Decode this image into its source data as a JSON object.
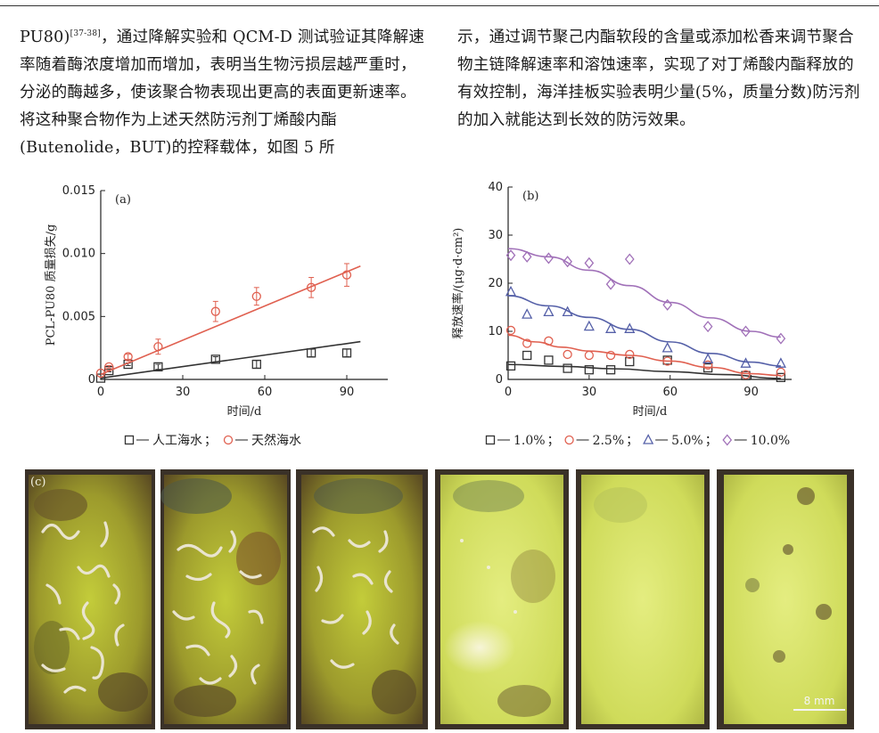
{
  "text": {
    "left_html": "PU80)<sup>[37-38]</sup>，通过降解实验和 QCM-D 测试验证其降解速率随着酶浓度增加而增加，表明当生物污损层越严重时，分泌的酶越多，使该聚合物表现出更高的表面更新速率。将这种聚合物作为上述天然防污剂丁烯酸内酯(Butenolide，BUT)的控释载体，如图 5 所",
    "left": {
      "ref_prefix": "PU80)",
      "ref": "[37-38]",
      "body": "，通过降解实验和 QCM-D 测试验证其降解速率随着酶浓度增加而增加，表明当生物污损层越严重时，分泌的酶越多，使该聚合物表现出更高的表面更新速率。将这种聚合物作为上述天然防污剂丁烯酸内酯(Butenolide，BUT)的控释载体，如图 5 所"
    },
    "right": "示，通过调节聚己内酯软段的含量或添加松香来调节聚合物主链降解速率和溶蚀速率，实现了对丁烯酸内酯释放的有效控制，海洋挂板实验表明少量(5%，质量分数)防污剂的加入就能达到长效的防污效果。"
  },
  "chart_data": [
    {
      "type": "scatter",
      "panel_label": "(a)",
      "xlabel": "时间/d",
      "ylabel": "PCL-PU80 质量损失/g",
      "xlim": [
        0,
        105
      ],
      "ylim": [
        0,
        0.015
      ],
      "x_ticks": [
        0,
        30,
        60,
        90
      ],
      "y_ticks": [
        0,
        0.005,
        0.01,
        0.015
      ],
      "y_tick_labels": [
        "0",
        "0.005",
        "0.010",
        "0.015"
      ],
      "grid": false,
      "legend_position": "bottom",
      "series": [
        {
          "name": "人工海水",
          "marker": "square",
          "color": "#333333",
          "x": [
            0,
            3,
            10,
            21,
            42,
            57,
            77,
            90
          ],
          "y": [
            0.0001,
            0.0007,
            0.0012,
            0.001,
            0.0016,
            0.0012,
            0.0021,
            0.0021
          ],
          "error": [
            0,
            0.0001,
            0.0001,
            0.0002,
            0.0002,
            0.0003,
            0.0003,
            0.0003
          ],
          "fit_line": [
            [
              0,
              0.0001
            ],
            [
              95,
              0.003
            ]
          ]
        },
        {
          "name": "天然海水",
          "marker": "circle",
          "color": "#e06050",
          "x": [
            0,
            3,
            10,
            21,
            42,
            57,
            77,
            90
          ],
          "y": [
            0.0005,
            0.001,
            0.0018,
            0.0026,
            0.0054,
            0.0066,
            0.0073,
            0.0083
          ],
          "error": [
            0,
            0.0001,
            0.0002,
            0.0006,
            0.0008,
            0.0007,
            0.0008,
            0.0009
          ],
          "fit_line": [
            [
              0,
              0.0004
            ],
            [
              95,
              0.009
            ]
          ]
        }
      ]
    },
    {
      "type": "scatter",
      "panel_label": "(b)",
      "xlabel": "时间/d",
      "ylabel": "释放速率/(μg·d·cm²)",
      "xlim": [
        0,
        105
      ],
      "ylim": [
        0,
        40
      ],
      "x_ticks": [
        0,
        30,
        60,
        90
      ],
      "y_ticks": [
        0,
        10,
        20,
        30,
        40
      ],
      "grid": false,
      "legend_position": "bottom",
      "series": [
        {
          "name": "1.0%",
          "marker": "square",
          "color": "#333333",
          "x": [
            1,
            7,
            15,
            22,
            30,
            38,
            45,
            59,
            74,
            88,
            101
          ],
          "y": [
            2.8,
            5.0,
            4.0,
            2.3,
            2.0,
            2.0,
            3.7,
            4.0,
            2.4,
            0.8,
            0.4
          ],
          "curve": [
            [
              0,
              3.1
            ],
            [
              20,
              2.7
            ],
            [
              40,
              2.2
            ],
            [
              60,
              1.6
            ],
            [
              80,
              1.0
            ],
            [
              101,
              0.2
            ]
          ]
        },
        {
          "name": "2.5%",
          "marker": "circle",
          "color": "#e06050",
          "x": [
            1,
            7,
            15,
            22,
            30,
            38,
            45,
            59,
            74,
            88,
            101
          ],
          "y": [
            10.2,
            7.5,
            8.0,
            5.2,
            5.0,
            5.0,
            5.2,
            3.8,
            3.0,
            1.0,
            1.5
          ],
          "curve": [
            [
              0,
              9.2
            ],
            [
              10,
              7.8
            ],
            [
              20,
              6.7
            ],
            [
              30,
              5.9
            ],
            [
              45,
              5.0
            ],
            [
              60,
              3.8
            ],
            [
              75,
              2.5
            ],
            [
              90,
              1.2
            ],
            [
              101,
              0.8
            ]
          ]
        },
        {
          "name": "5.0%",
          "marker": "triangle",
          "color": "#5560a8",
          "x": [
            1,
            7,
            15,
            22,
            30,
            38,
            45,
            59,
            74,
            88,
            101
          ],
          "y": [
            18.2,
            13.5,
            14.0,
            14.0,
            11.0,
            10.5,
            10.5,
            6.5,
            4.2,
            3.3,
            3.3
          ],
          "curve": [
            [
              0,
              17.4
            ],
            [
              15,
              15.3
            ],
            [
              30,
              12.9
            ],
            [
              45,
              10.4
            ],
            [
              60,
              7.8
            ],
            [
              75,
              5.4
            ],
            [
              90,
              3.6
            ],
            [
              101,
              2.8
            ]
          ]
        },
        {
          "name": "10.0%",
          "marker": "diamond",
          "color": "#a070b8",
          "x": [
            1,
            7,
            15,
            22,
            30,
            38,
            45,
            59,
            74,
            88,
            101
          ],
          "y": [
            25.8,
            25.5,
            25.2,
            24.5,
            24.2,
            19.8,
            25.0,
            15.5,
            11.0,
            10.0,
            8.5
          ],
          "curve": [
            [
              0,
              27.2
            ],
            [
              15,
              25.5
            ],
            [
              30,
              22.7
            ],
            [
              45,
              19.5
            ],
            [
              60,
              16.0
            ],
            [
              75,
              12.8
            ],
            [
              90,
              10.0
            ],
            [
              101,
              8.8
            ]
          ]
        }
      ]
    }
  ],
  "figure_c": {
    "panel_label": "(c)",
    "scale_bar": "8 mm"
  }
}
